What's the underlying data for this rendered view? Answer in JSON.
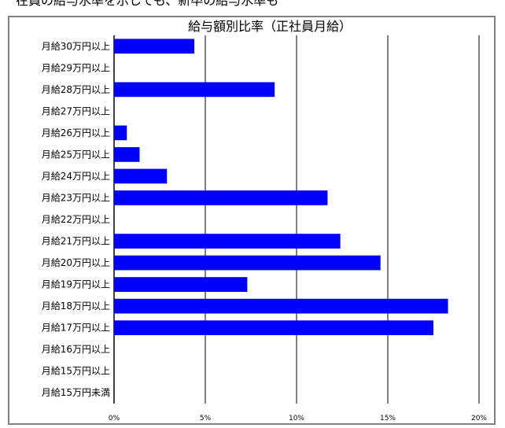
{
  "top_cutoff_text": "在員の給与水準を示しても、新卒の給与水準も",
  "chart_data": {
    "type": "bar",
    "orientation": "horizontal",
    "title": "給与額別比率（正社員月給）",
    "categories": [
      "月給30万円以上",
      "月給29万円以上",
      "月給28万円以上",
      "月給27万円以上",
      "月給26万円以上",
      "月給25万円以上",
      "月給24万円以上",
      "月給23万円以上",
      "月給22万円以上",
      "月給21万円以上",
      "月給20万円以上",
      "月給19万円以上",
      "月給18万円以上",
      "月給17万円以上",
      "月給16万円以上",
      "月給15万円以上",
      "月給15万円未満"
    ],
    "values": [
      4.4,
      0,
      8.8,
      0,
      0.7,
      1.4,
      2.9,
      11.7,
      0,
      12.4,
      14.6,
      7.3,
      18.3,
      17.5,
      0,
      0,
      0
    ],
    "xlim": [
      0,
      20
    ],
    "xticks": [
      0,
      5,
      10,
      15,
      20
    ],
    "xtick_labels": [
      "0%",
      "5%",
      "10%",
      "15%",
      "20%"
    ],
    "xlabel": "",
    "ylabel": "",
    "grid": "vertical",
    "bar_color": "#0000ff",
    "legend": "none"
  }
}
